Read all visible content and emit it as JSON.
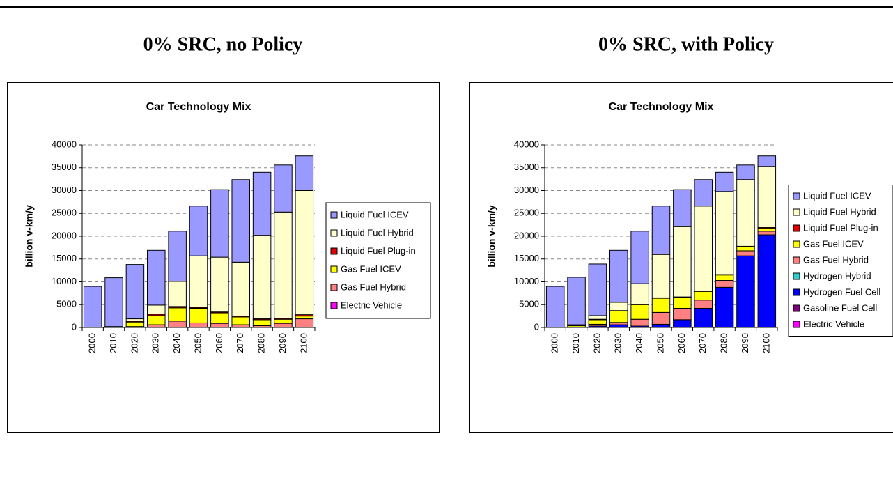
{
  "headings": [
    "0% SRC, no Policy",
    "0% SRC, with Policy"
  ],
  "chart_data": [
    {
      "type": "bar",
      "stacked": true,
      "title": "Car Technology Mix",
      "y_label": "billion v-km/y",
      "categories": [
        "2000",
        "2010",
        "2020",
        "2030",
        "2040",
        "2050",
        "2060",
        "2070",
        "2080",
        "2090",
        "2100"
      ],
      "ylim": [
        0,
        40000
      ],
      "yticks": [
        0,
        5000,
        10000,
        15000,
        20000,
        25000,
        30000,
        35000,
        40000
      ],
      "grid": true,
      "legend": "right",
      "series": [
        {
          "name": "Liquid Fuel ICEV",
          "color": "#9999ff",
          "values": [
            9000,
            10700,
            11900,
            12000,
            11000,
            10900,
            14800,
            18100,
            13800,
            10300,
            7600
          ]
        },
        {
          "name": "Liquid Fuel Hybrid",
          "color": "#ffffcc",
          "values": [
            0,
            0,
            500,
            2000,
            5500,
            11300,
            12000,
            11800,
            18300,
            23300,
            27200
          ]
        },
        {
          "name": "Liquid Fuel Plug-in",
          "color": "#e00000",
          "values": [
            0,
            100,
            200,
            300,
            300,
            200,
            200,
            200,
            200,
            200,
            300
          ]
        },
        {
          "name": "Gas Fuel ICEV",
          "color": "#ffff00",
          "values": [
            0,
            100,
            1000,
            2000,
            2900,
            3200,
            2300,
            1700,
            1300,
            900,
            600
          ]
        },
        {
          "name": "Gas Fuel Hybrid",
          "color": "#ff8080",
          "values": [
            0,
            0,
            200,
            600,
            1400,
            1000,
            900,
            600,
            400,
            900,
            1900
          ]
        },
        {
          "name": "Electric Vehicle",
          "color": "#ff00ff",
          "values": [
            0,
            0,
            0,
            0,
            0,
            0,
            0,
            0,
            0,
            0,
            0
          ]
        }
      ]
    },
    {
      "type": "bar",
      "stacked": true,
      "title": "Car Technology Mix",
      "y_label": "billion v-km/y",
      "categories": [
        "2000",
        "2010",
        "2020",
        "2030",
        "2040",
        "2050",
        "2060",
        "2070",
        "2080",
        "2090",
        "2100"
      ],
      "ylim": [
        0,
        40000
      ],
      "yticks": [
        0,
        5000,
        10000,
        15000,
        20000,
        25000,
        30000,
        35000,
        40000
      ],
      "grid": true,
      "legend": "right",
      "series": [
        {
          "name": "Liquid Fuel ICEV",
          "color": "#9999ff",
          "values": [
            9000,
            10400,
            11300,
            11400,
            11500,
            10600,
            8100,
            5800,
            4200,
            3200,
            2300
          ]
        },
        {
          "name": "Liquid Fuel Hybrid",
          "color": "#ffffcc",
          "values": [
            0,
            100,
            800,
            1800,
            4500,
            9500,
            15400,
            18600,
            18200,
            14600,
            13400
          ]
        },
        {
          "name": "Liquid Fuel Plug-in",
          "color": "#e00000",
          "values": [
            0,
            100,
            100,
            100,
            100,
            100,
            100,
            100,
            100,
            100,
            200
          ]
        },
        {
          "name": "Gas Fuel ICEV",
          "color": "#ffff00",
          "values": [
            0,
            300,
            1000,
            2500,
            3200,
            3100,
            2400,
            1900,
            1200,
            900,
            600
          ]
        },
        {
          "name": "Gas Fuel Hybrid",
          "color": "#ff8080",
          "values": [
            0,
            0,
            400,
            500,
            1500,
            2600,
            2500,
            1800,
            1500,
            1100,
            800
          ]
        },
        {
          "name": "Hydrogen Hybrid",
          "color": "#33cccc",
          "values": [
            0,
            0,
            0,
            0,
            0,
            0,
            0,
            0,
            0,
            0,
            0
          ]
        },
        {
          "name": "Hydrogen Fuel Cell",
          "color": "#0000ff",
          "values": [
            0,
            100,
            300,
            600,
            300,
            700,
            1700,
            4200,
            8800,
            15700,
            20300
          ]
        },
        {
          "name": "Gasoline Fuel Cell",
          "color": "#800080",
          "values": [
            0,
            0,
            0,
            0,
            0,
            0,
            0,
            0,
            0,
            0,
            0
          ]
        },
        {
          "name": "Electric Vehicle",
          "color": "#ff00ff",
          "values": [
            0,
            0,
            0,
            0,
            0,
            0,
            0,
            0,
            0,
            0,
            0
          ]
        }
      ]
    }
  ]
}
